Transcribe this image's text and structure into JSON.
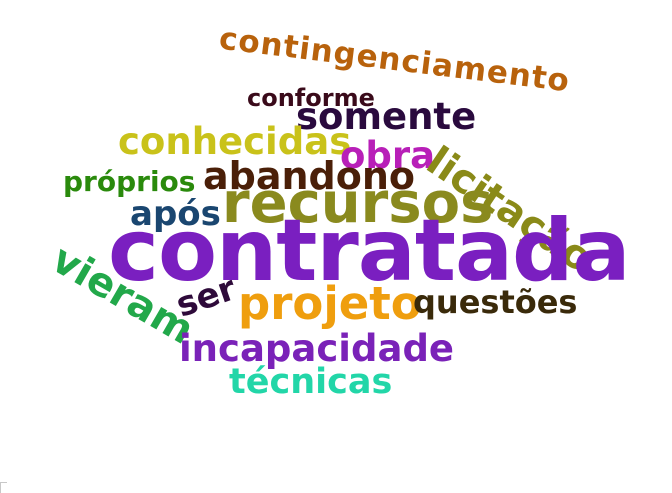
{
  "word_cloud": {
    "words": {
      "contingenciamento": {
        "text": "contingenciamento",
        "color": "#b8620c"
      },
      "conforme": {
        "text": "conforme",
        "color": "#3a0a1a"
      },
      "somente": {
        "text": "somente",
        "color": "#2a0a3e"
      },
      "conhecidas": {
        "text": "conhecidas",
        "color": "#c9c21a"
      },
      "obra": {
        "text": "obra",
        "color": "#b81fb8"
      },
      "licitacao": {
        "text": "licitação",
        "color": "#8a8a18"
      },
      "proprios": {
        "text": "próprios",
        "color": "#2a8a0c"
      },
      "abandono": {
        "text": "abandono",
        "color": "#4a1f08"
      },
      "recursos": {
        "text": "recursos",
        "color": "#8a8a1e"
      },
      "apos": {
        "text": "após",
        "color": "#1a4670"
      },
      "contratada": {
        "text": "contratada",
        "color": "#7a1fc0"
      },
      "vieram": {
        "text": "vieram",
        "color": "#22a84a"
      },
      "ser": {
        "text": "ser",
        "color": "#2e0a3a"
      },
      "projeto": {
        "text": "projeto",
        "color": "#ef9e0e"
      },
      "questoes": {
        "text": "questões",
        "color": "#3a2a0a"
      },
      "incapacidade": {
        "text": "incapacidade",
        "color": "#7a22b8"
      },
      "tecnicas": {
        "text": "técnicas",
        "color": "#22d6a8"
      }
    }
  }
}
